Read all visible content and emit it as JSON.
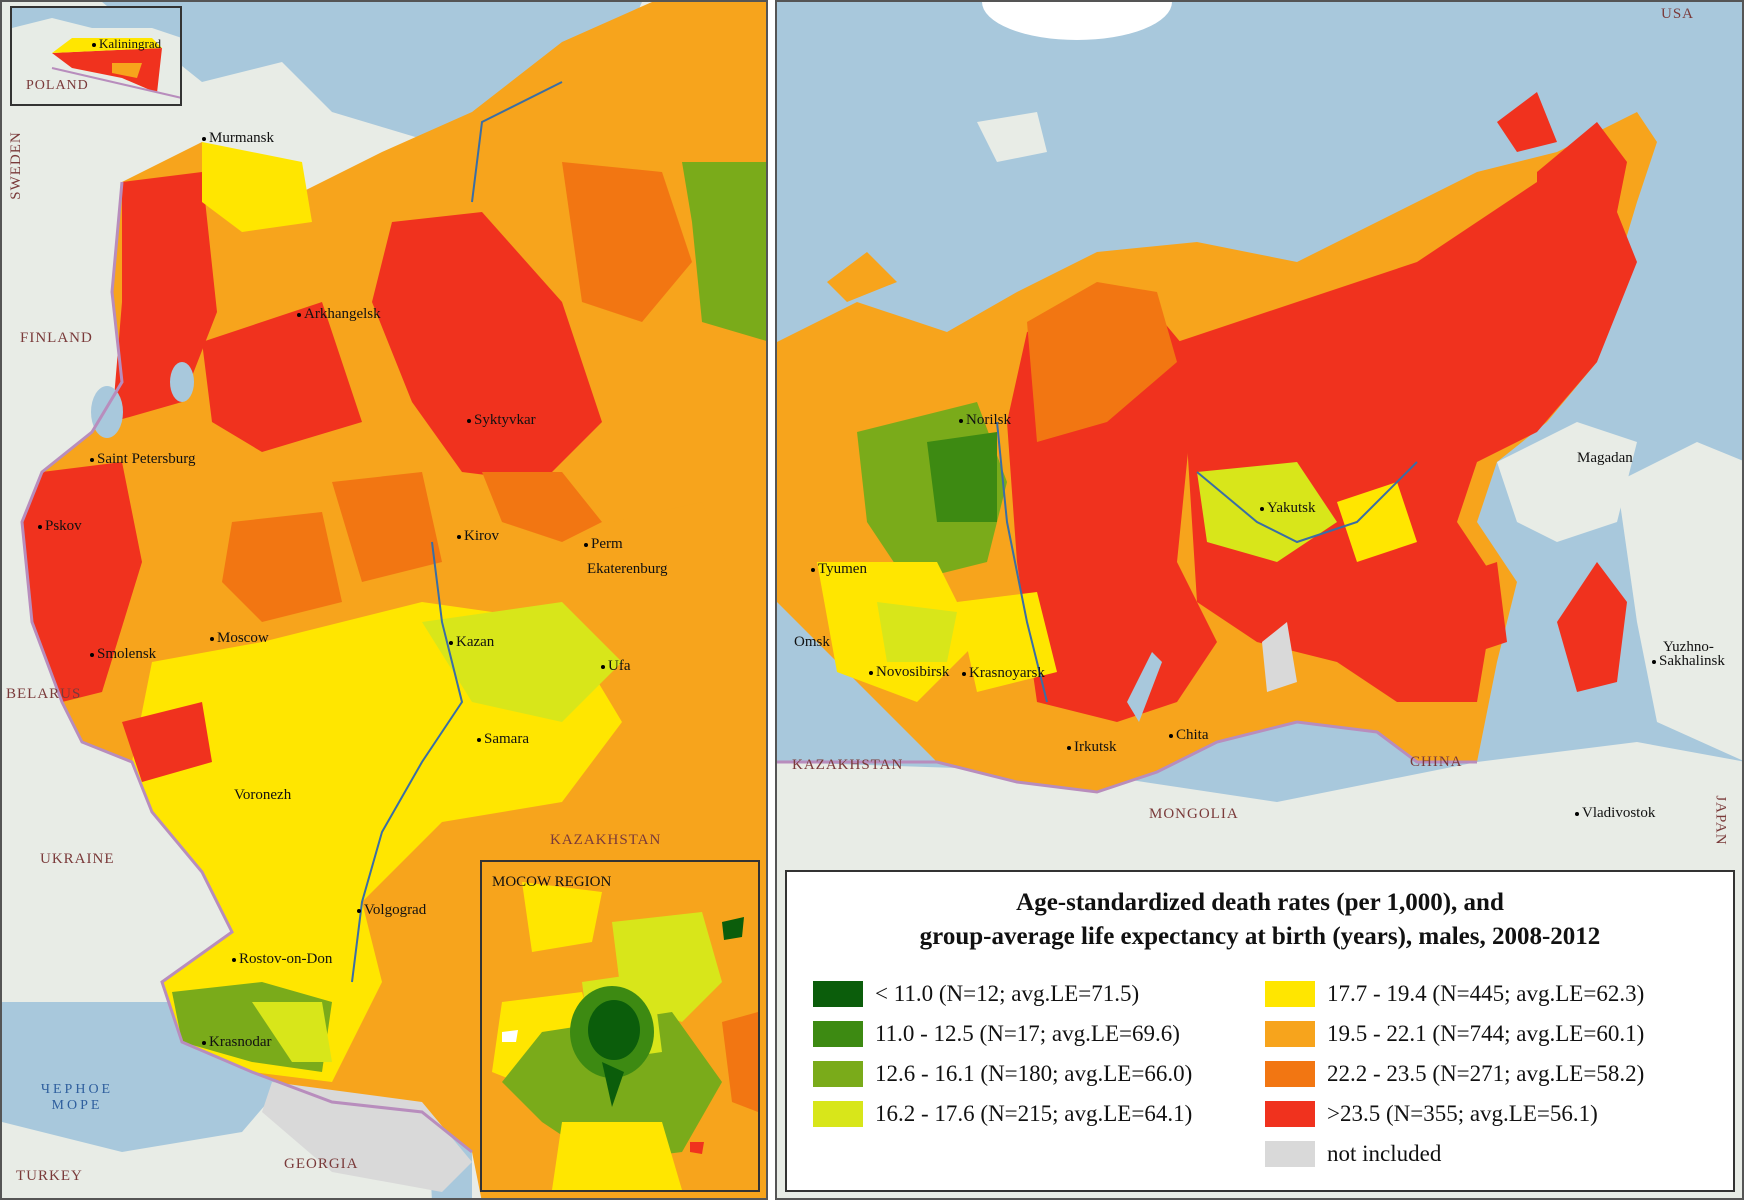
{
  "colors": {
    "c1": "#0b5d0b",
    "c2": "#3d8a12",
    "c3": "#7aab1a",
    "c4": "#d8e61a",
    "c5": "#ffe600",
    "c6": "#f7a41c",
    "c7": "#f27612",
    "c8": "#f0321e",
    "na": "#d9d9d9",
    "land": "#e8ece6",
    "water": "#a8c8dc",
    "border": "#b88dbd"
  },
  "legend": {
    "title_line1": "Age-standardized death rates (per 1,000), and",
    "title_line2": "group-average life expectancy at birth (years), males, 2008-2012",
    "items": [
      {
        "range": "< 11.0 (N=12; avg.LE=71.5)",
        "color": "#0b5d0b"
      },
      {
        "range": "11.0 - 12.5 (N=17; avg.LE=69.6)",
        "color": "#3d8a12"
      },
      {
        "range": "12.6 - 16.1 (N=180; avg.LE=66.0)",
        "color": "#7aab1a"
      },
      {
        "range": "16.2 - 17.6 (N=215; avg.LE=64.1)",
        "color": "#d8e61a"
      },
      {
        "range": "17.7 - 19.4 (N=445; avg.LE=62.3)",
        "color": "#ffe600"
      },
      {
        "range": "19.5 - 22.1 (N=744; avg.LE=60.1)",
        "color": "#f7a41c"
      },
      {
        "range": "22.2 - 23.5 (N=271; avg.LE=58.2)",
        "color": "#f27612"
      },
      {
        "range": ">23.5 (N=355; avg.LE=56.1)",
        "color": "#f0321e"
      },
      {
        "range": "not included",
        "color": "#d9d9d9"
      }
    ]
  },
  "west": {
    "cities": [
      "Kaliningrad",
      "Murmansk",
      "Arkhangelsk",
      "Syktyvkar",
      "Saint Petersburg",
      "Pskov",
      "Kirov",
      "Perm",
      "Ekaterenburg",
      "Moscow",
      "Smolensk",
      "Kazan",
      "Ufa",
      "Samara",
      "Voronezh",
      "Volgograd",
      "Rostov-on-Don",
      "Krasnodar"
    ],
    "countries": [
      "POLAND",
      "SWEDEN",
      "FINLAND",
      "BELARUS",
      "UKRAINE",
      "KAZAKHSTAN",
      "TURKEY",
      "GEORGIA"
    ],
    "sea_line1": "ЧЕРНОЕ",
    "sea_line2": "МОРЕ",
    "moscow_inset_title": "MOCOW REGION"
  },
  "east": {
    "cities": [
      "Norilsk",
      "Magadan",
      "Yakutsk",
      "Tyumen",
      "Omsk",
      "Novosibirsk",
      "Krasnoyarsk",
      "Yuzhno-",
      "Sakhalinsk",
      "Irkutsk",
      "Chita",
      "Vladivostok"
    ],
    "countries": [
      "USA",
      "KAZAKHSTAN",
      "MONGOLIA",
      "CHINA",
      "JAPAN"
    ]
  }
}
